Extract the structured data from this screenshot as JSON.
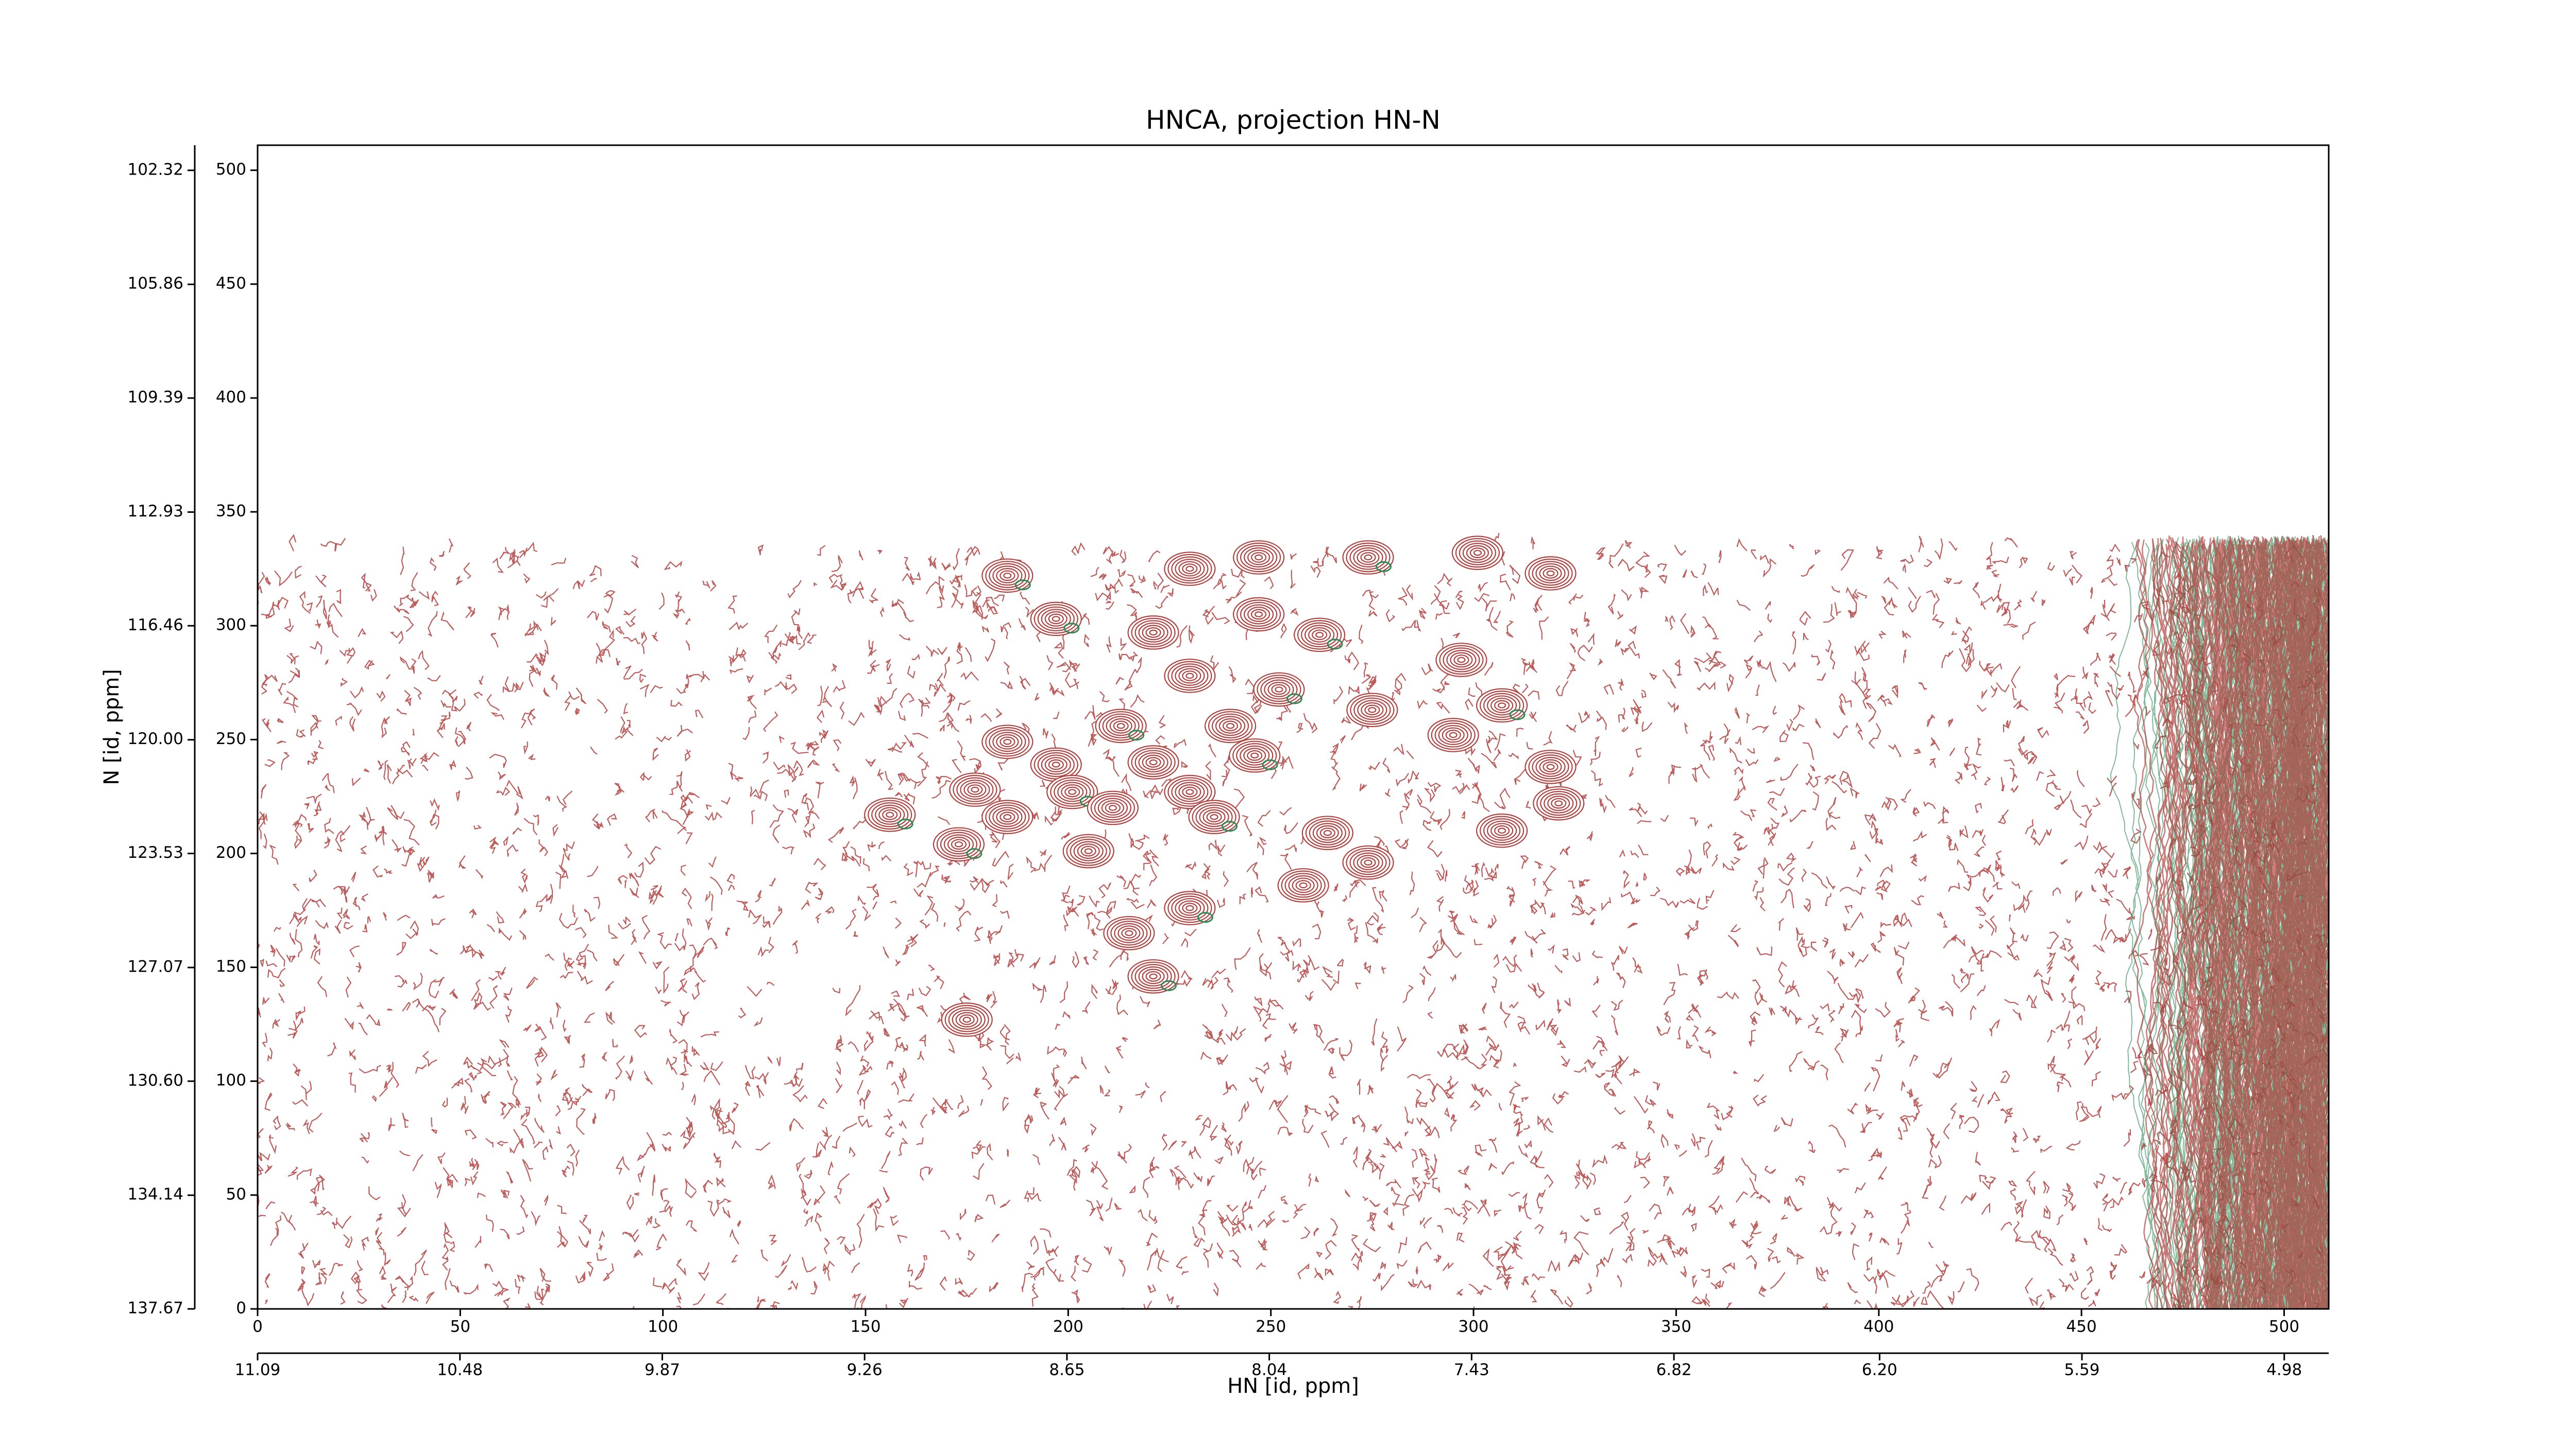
{
  "chart_data": {
    "type": "contour",
    "title": "HNCA, projection HN-N",
    "xlabel": "HN [id, ppm]",
    "ylabel": "N [id, ppm]",
    "xlim": [
      0,
      511
    ],
    "ylim": [
      0,
      511
    ],
    "xticks": [
      0,
      50,
      100,
      150,
      200,
      250,
      300,
      350,
      400,
      450,
      500
    ],
    "yticks": [
      0,
      50,
      100,
      150,
      200,
      250,
      300,
      350,
      400,
      450,
      500
    ],
    "x2lim": [
      11.09,
      4.846
    ],
    "x2ticks": [
      11.09,
      10.48,
      9.87,
      9.26,
      8.65,
      8.04,
      7.43,
      6.82,
      {
        "value": 6.2,
        "label": "6.20"
      },
      5.59,
      4.98
    ],
    "y2lim": [
      137.67,
      101.54
    ],
    "y2ticks": [
      137.67,
      134.14,
      {
        "value": 130.6,
        "label": "130.60"
      },
      127.07,
      123.53,
      {
        "value": 120.0,
        "label": "120.00"
      },
      116.46,
      112.93,
      109.39,
      105.86,
      102.32
    ],
    "data_extent_y": [
      0,
      335
    ],
    "colors": {
      "positive": "#b0413e",
      "negative": "#2e8b57"
    },
    "peaks": {
      "x": [
        185,
        230,
        247,
        274,
        301,
        319,
        197,
        221,
        247,
        262,
        297,
        230,
        252,
        275,
        185,
        213,
        240,
        295,
        307,
        197,
        221,
        246,
        319,
        177,
        201,
        230,
        321,
        156,
        185,
        211,
        236,
        264,
        307,
        173,
        205,
        274,
        230,
        258,
        215,
        221,
        175
      ],
      "y": [
        322,
        325,
        330,
        330,
        332,
        323,
        303,
        297,
        305,
        296,
        285,
        278,
        272,
        263,
        249,
        256,
        256,
        252,
        265,
        239,
        240,
        243,
        238,
        228,
        227,
        227,
        222,
        217,
        216,
        220,
        216,
        209,
        210,
        204,
        201,
        196,
        176,
        186,
        165,
        146,
        127
      ]
    }
  }
}
